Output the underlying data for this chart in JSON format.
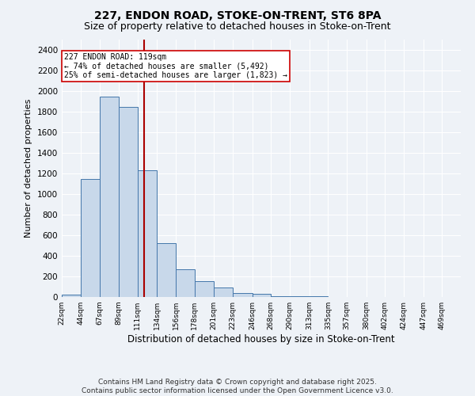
{
  "title1": "227, ENDON ROAD, STOKE-ON-TRENT, ST6 8PA",
  "title2": "Size of property relative to detached houses in Stoke-on-Trent",
  "xlabel": "Distribution of detached houses by size in Stoke-on-Trent",
  "ylabel": "Number of detached properties",
  "bin_edges": [
    22,
    44,
    67,
    89,
    111,
    134,
    156,
    178,
    201,
    223,
    246,
    268,
    290,
    313,
    335,
    357,
    380,
    402,
    424,
    447,
    469
  ],
  "bar_heights": [
    25,
    1150,
    1950,
    1850,
    1230,
    520,
    270,
    155,
    90,
    40,
    30,
    8,
    4,
    4,
    3,
    2,
    2,
    2,
    2,
    2
  ],
  "bar_color": "#c8d8ea",
  "bar_edge_color": "#4477aa",
  "subject_size": 119,
  "vline_color": "#aa0000",
  "annotation_text": "227 ENDON ROAD: 119sqm\n← 74% of detached houses are smaller (5,492)\n25% of semi-detached houses are larger (1,823) →",
  "annotation_box_color": "#ffffff",
  "annotation_box_edge": "#cc0000",
  "ylim": [
    0,
    2500
  ],
  "yticks": [
    0,
    200,
    400,
    600,
    800,
    1000,
    1200,
    1400,
    1600,
    1800,
    2000,
    2200,
    2400
  ],
  "footer1": "Contains HM Land Registry data © Crown copyright and database right 2025.",
  "footer2": "Contains public sector information licensed under the Open Government Licence v3.0.",
  "bg_color": "#eef2f7",
  "grid_color": "#ffffff",
  "title1_fontsize": 10,
  "title2_fontsize": 9,
  "xlabel_fontsize": 8.5,
  "ylabel_fontsize": 8,
  "footer_fontsize": 6.5
}
